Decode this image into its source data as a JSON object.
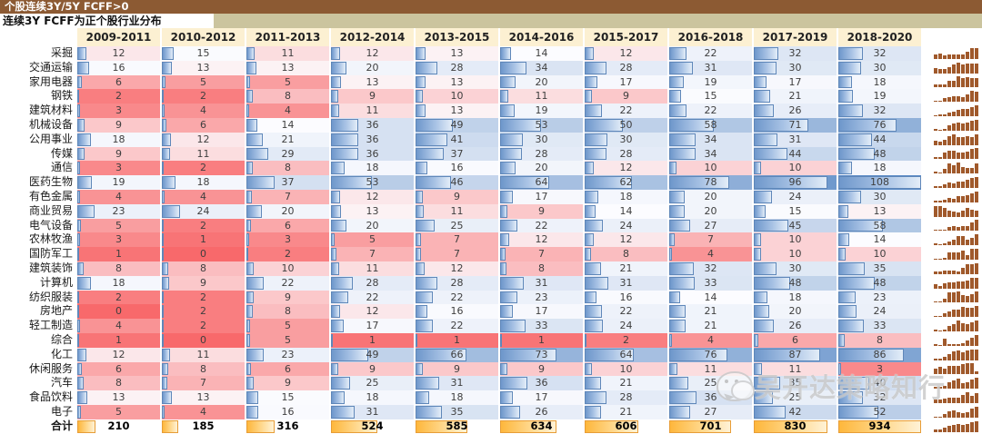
{
  "titles": {
    "main": "个股连续3Y/5Y FCFF>0",
    "sub": "连续3Y FCFF为正个股行业分布"
  },
  "watermark": {
    "text": "吴开达策略知行",
    "icon": "wechat-icon"
  },
  "colors": {
    "title_bar": "#8C5A33",
    "subtitle_strip": "#CBC49E",
    "header_bg": "#FCF0D2",
    "scale_min": "#F8696B",
    "scale_mid": "#FCFCFF",
    "scale_max": "#5A8AC6",
    "databar": "#6E97CB",
    "databar_border": "#5F87B9",
    "total_bar": "#FEB73C",
    "total_bar_border": "#E79D37",
    "sparkline": "#A0592B"
  },
  "chart_data": {
    "type": "heatmap",
    "title": "连续3Y FCFF为正个股行业分布",
    "columns": [
      "2009-2011",
      "2010-2012",
      "2011-2013",
      "2012-2014",
      "2013-2015",
      "2014-2016",
      "2015-2017",
      "2016-2018",
      "2017-2019",
      "2018-2020"
    ],
    "scale": {
      "bar_max": 108,
      "color_min": 0,
      "color_mid": 14,
      "color_max": 108,
      "total_bar_max": 934
    },
    "legend_position": "none",
    "rows": [
      {
        "name": "采掘",
        "values": [
          12,
          15,
          11,
          12,
          13,
          14,
          12,
          22,
          32,
          32
        ]
      },
      {
        "name": "交通运输",
        "values": [
          16,
          13,
          13,
          20,
          28,
          34,
          28,
          31,
          30,
          30
        ]
      },
      {
        "name": "家用电器",
        "values": [
          6,
          5,
          5,
          13,
          13,
          20,
          17,
          19,
          17,
          18
        ]
      },
      {
        "name": "钢铁",
        "values": [
          2,
          2,
          8,
          9,
          10,
          11,
          9,
          15,
          21,
          19
        ]
      },
      {
        "name": "建筑材料",
        "values": [
          3,
          4,
          4,
          11,
          13,
          19,
          22,
          22,
          26,
          32
        ]
      },
      {
        "name": "机械设备",
        "values": [
          9,
          6,
          14,
          36,
          49,
          53,
          50,
          58,
          71,
          76
        ]
      },
      {
        "name": "公用事业",
        "values": [
          18,
          12,
          21,
          36,
          41,
          30,
          30,
          34,
          31,
          44
        ]
      },
      {
        "name": "传媒",
        "values": [
          9,
          11,
          29,
          36,
          37,
          28,
          28,
          34,
          44,
          48
        ]
      },
      {
        "name": "通信",
        "values": [
          3,
          2,
          8,
          18,
          16,
          20,
          12,
          10,
          10,
          18
        ]
      },
      {
        "name": "医药生物",
        "values": [
          19,
          18,
          37,
          53,
          46,
          64,
          62,
          78,
          96,
          108
        ]
      },
      {
        "name": "有色金属",
        "values": [
          4,
          4,
          7,
          12,
          9,
          17,
          18,
          20,
          24,
          30
        ]
      },
      {
        "name": "商业贸易",
        "values": [
          23,
          24,
          20,
          13,
          11,
          9,
          14,
          20,
          15,
          13
        ]
      },
      {
        "name": "电气设备",
        "values": [
          5,
          2,
          6,
          20,
          25,
          22,
          24,
          27,
          45,
          58
        ]
      },
      {
        "name": "农林牧渔",
        "values": [
          3,
          1,
          3,
          5,
          7,
          12,
          12,
          7,
          10,
          14
        ]
      },
      {
        "name": "国防军工",
        "values": [
          1,
          0,
          2,
          7,
          7,
          7,
          8,
          4,
          10,
          10
        ]
      },
      {
        "name": "建筑装饰",
        "values": [
          8,
          8,
          10,
          11,
          12,
          8,
          21,
          32,
          30,
          35
        ]
      },
      {
        "name": "计算机",
        "values": [
          18,
          9,
          22,
          28,
          28,
          31,
          31,
          33,
          48,
          48
        ]
      },
      {
        "name": "纺织服装",
        "values": [
          2,
          2,
          9,
          22,
          22,
          23,
          16,
          14,
          18,
          23
        ]
      },
      {
        "name": "房地产",
        "values": [
          0,
          2,
          8,
          12,
          16,
          17,
          22,
          21,
          20,
          24
        ]
      },
      {
        "name": "轻工制造",
        "values": [
          4,
          2,
          5,
          17,
          22,
          33,
          24,
          21,
          26,
          33
        ]
      },
      {
        "name": "综合",
        "values": [
          1,
          0,
          5,
          1,
          1,
          1,
          2,
          4,
          6,
          8
        ]
      },
      {
        "name": "化工",
        "values": [
          12,
          11,
          23,
          49,
          66,
          73,
          64,
          76,
          87,
          86
        ]
      },
      {
        "name": "休闲服务",
        "values": [
          6,
          8,
          6,
          9,
          9,
          9,
          10,
          11,
          11,
          3
        ]
      },
      {
        "name": "汽车",
        "values": [
          8,
          7,
          9,
          25,
          31,
          36,
          21,
          25,
          35,
          40
        ]
      },
      {
        "name": "食品饮料",
        "values": [
          13,
          13,
          15,
          18,
          18,
          17,
          28,
          36,
          25,
          32
        ]
      },
      {
        "name": "电子",
        "values": [
          5,
          4,
          16,
          31,
          35,
          26,
          21,
          27,
          42,
          52
        ]
      }
    ],
    "totals": {
      "name": "合计",
      "values": [
        210,
        185,
        316,
        524,
        585,
        634,
        606,
        701,
        830,
        934
      ]
    }
  }
}
